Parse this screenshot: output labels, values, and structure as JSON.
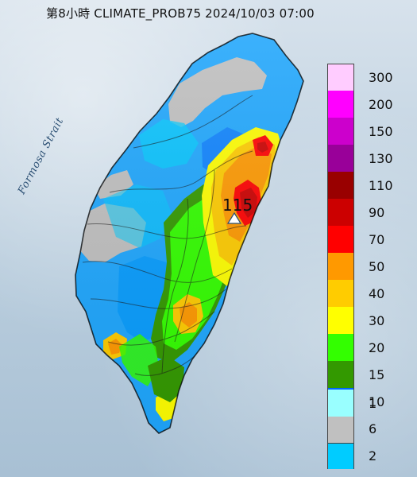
{
  "title": "第8小時  CLIMATE_PROB75 2024/10/03 07:00",
  "strait_label": "Formosa Strait",
  "peak_value_label": "115",
  "legend": {
    "items": [
      {
        "label": "300",
        "color": "#ffccff"
      },
      {
        "label": "200",
        "color": "#ff00ff"
      },
      {
        "label": "150",
        "color": "#cc00cc"
      },
      {
        "label": "130",
        "color": "#990099"
      },
      {
        "label": "110",
        "color": "#990000"
      },
      {
        "label": "90",
        "color": "#cc0000"
      },
      {
        "label": "70",
        "color": "#ff0000"
      },
      {
        "label": "50",
        "color": "#ff9900"
      },
      {
        "label": "40",
        "color": "#ffcc00"
      },
      {
        "label": "30",
        "color": "#ffff00"
      },
      {
        "label": "20",
        "color": "#33ff00"
      },
      {
        "label": "15",
        "color": "#339900"
      },
      {
        "label": "10",
        "color": "#0066ff"
      },
      {
        "label": "6",
        "color": "#0099ff"
      },
      {
        "label": "2",
        "color": "#00ccff"
      },
      {
        "label": "1",
        "color": "#99ffff"
      },
      {
        "label": "",
        "color": "#c0c0c0"
      }
    ]
  },
  "colors": {
    "no_rain": "#c0c0c0",
    "marker_fill": "#ffffff",
    "marker_outline": "#2b4f73"
  }
}
